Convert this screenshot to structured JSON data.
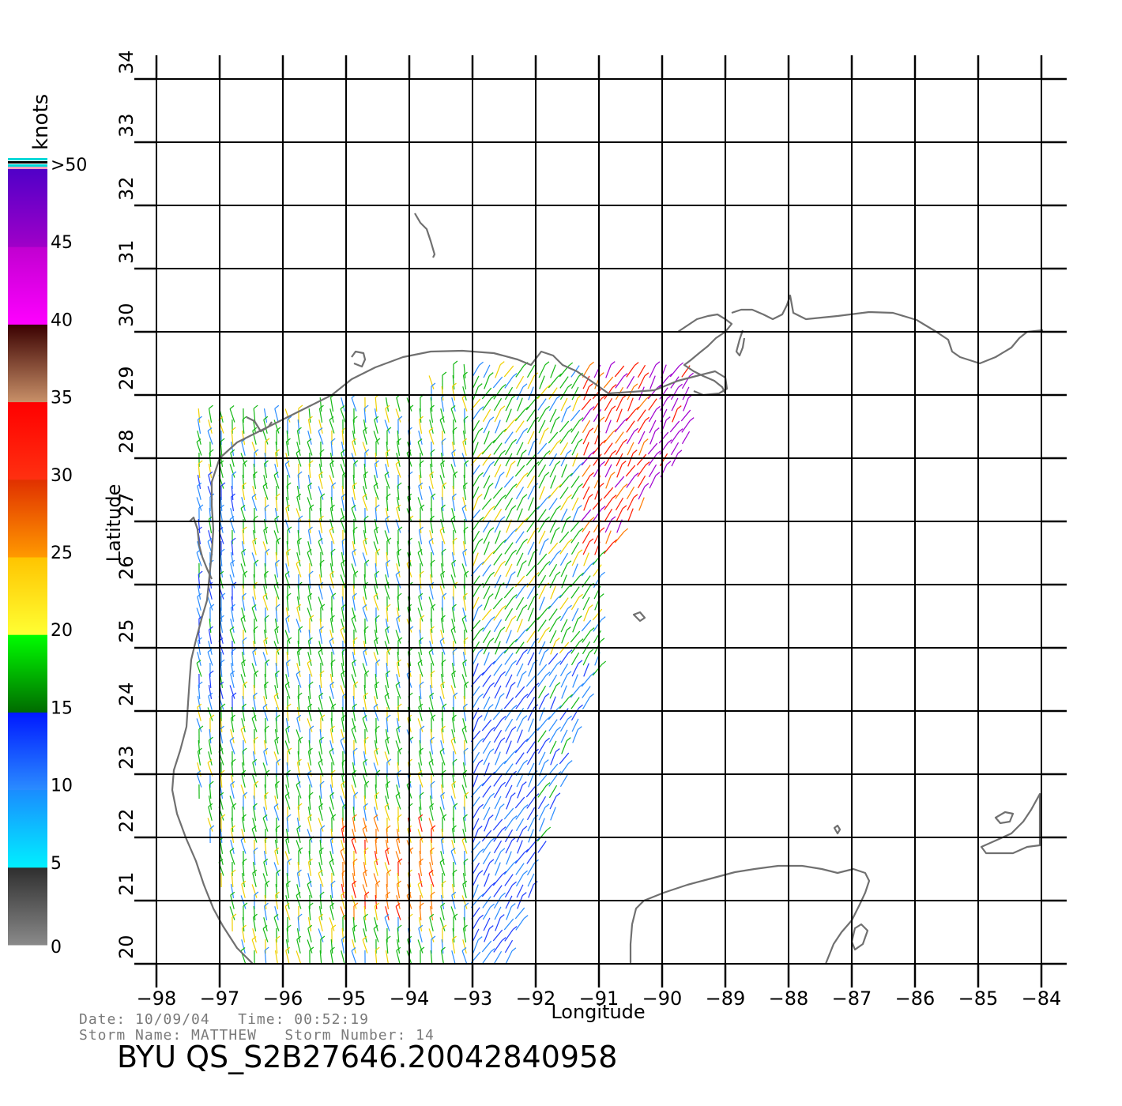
{
  "map": {
    "x_axis": {
      "label": "Longitude",
      "min": -98,
      "max": -84,
      "ticks": [
        "−98",
        "−97",
        "−96",
        "−95",
        "−94",
        "−93",
        "−92",
        "−91",
        "−90",
        "−89",
        "−88",
        "−87",
        "−86",
        "−85",
        "−84"
      ]
    },
    "y_axis": {
      "label": "Latitude",
      "min": 20,
      "max": 34,
      "ticks": [
        "20",
        "21",
        "22",
        "23",
        "24",
        "25",
        "26",
        "27",
        "28",
        "29",
        "30",
        "31",
        "32",
        "33",
        "34"
      ]
    },
    "grid": true,
    "coastline_color": "#707070"
  },
  "legend": {
    "unit": "knots",
    "labels": [
      "0",
      "5",
      "10",
      "15",
      "20",
      "25",
      "30",
      "35",
      "40",
      "45",
      ">50"
    ],
    "bands": [
      {
        "from": 0,
        "to": 5,
        "colors": [
          "#8a8a8a",
          "#2e2e2e"
        ]
      },
      {
        "from": 5,
        "to": 10,
        "colors": [
          "#00f0ff",
          "#1a8cff"
        ]
      },
      {
        "from": 10,
        "to": 15,
        "colors": [
          "#2a8cff",
          "#0018ff"
        ]
      },
      {
        "from": 15,
        "to": 20,
        "colors": [
          "#006b00",
          "#00ff00"
        ]
      },
      {
        "from": 20,
        "to": 25,
        "colors": [
          "#ffff33",
          "#ffc400"
        ]
      },
      {
        "from": 25,
        "to": 30,
        "colors": [
          "#ff9900",
          "#e03000"
        ]
      },
      {
        "from": 30,
        "to": 35,
        "colors": [
          "#ff3010",
          "#ff0000"
        ]
      },
      {
        "from": 35,
        "to": 40,
        "colors": [
          "#c89068",
          "#3a0000"
        ]
      },
      {
        "from": 40,
        "to": 45,
        "colors": [
          "#ff00ff",
          "#c000d0"
        ]
      },
      {
        "from": 45,
        "to": 50,
        "colors": [
          "#a000c8",
          "#5000c8"
        ]
      }
    ]
  },
  "footer": {
    "date_label": "Date:",
    "date": "10/09/04",
    "time_label": "Time:",
    "time": "00:52:19",
    "storm_name_label": "Storm Name:",
    "storm_name": "MATTHEW",
    "storm_number_label": "Storm Number:",
    "storm_number": "14",
    "line1": "Date: 10/09/04   Time: 00:52:19",
    "line2": "Storm Name: MATTHEW   Storm Number: 14",
    "product_id": "BYU QS_S2B27646.20042840958"
  }
}
